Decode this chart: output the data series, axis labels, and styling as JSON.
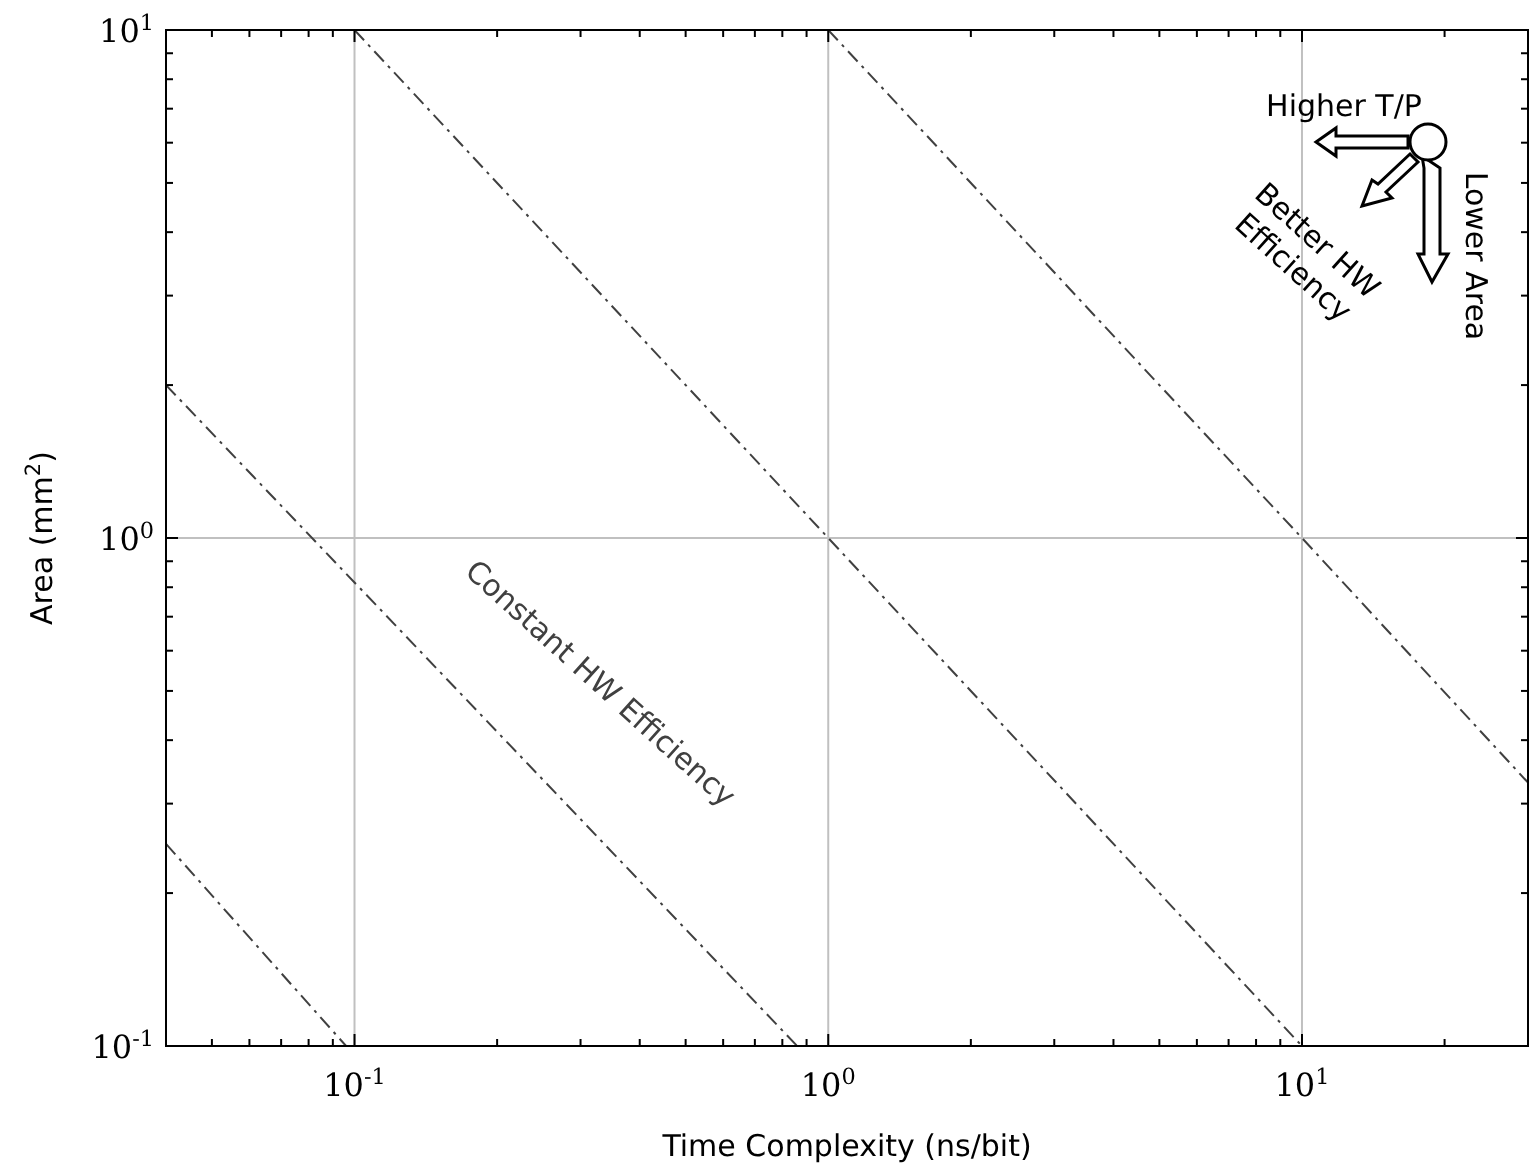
{
  "chart_data": {
    "type": "line",
    "xlabel": "Time Complexity (ns/bit)",
    "ylabel": "Area (mm$^{2}$)",
    "log": "xy",
    "grid": true,
    "line_style": "dashed",
    "marker": "none",
    "xlim": [
      0.04,
      30
    ],
    "ylim": [
      0.1,
      10
    ],
    "xticks": [
      {
        "value": 0.05,
        "label": null
      },
      {
        "value": 0.06,
        "label": null
      },
      {
        "value": 0.07,
        "label": null
      },
      {
        "value": 0.08,
        "label": null
      },
      {
        "value": 0.09,
        "label": null
      },
      {
        "value": 0.1,
        "label": "10$^{-1}$"
      },
      {
        "value": 0.2,
        "label": null
      },
      {
        "value": 0.3,
        "label": null
      },
      {
        "value": 0.4,
        "label": null
      },
      {
        "value": 0.5,
        "label": null
      },
      {
        "value": 0.6,
        "label": null
      },
      {
        "value": 0.7,
        "label": null
      },
      {
        "value": 0.8,
        "label": null
      },
      {
        "value": 0.9,
        "label": null
      },
      {
        "value": 1,
        "label": "10$^{0}$"
      },
      {
        "value": 2,
        "label": null
      },
      {
        "value": 3,
        "label": null
      },
      {
        "value": 4,
        "label": null
      },
      {
        "value": 5,
        "label": null
      },
      {
        "value": 6,
        "label": null
      },
      {
        "value": 7,
        "label": null
      },
      {
        "value": 8,
        "label": null
      },
      {
        "value": 9,
        "label": null
      },
      {
        "value": 10,
        "label": "10$^{1}$"
      },
      {
        "value": 20,
        "label": null
      }
    ],
    "yticks": [
      {
        "value": 0.1,
        "label": "10$^{-1}$"
      },
      {
        "value": 0.2,
        "label": null
      },
      {
        "value": 0.3,
        "label": null
      },
      {
        "value": 0.4,
        "label": null
      },
      {
        "value": 0.5,
        "label": null
      },
      {
        "value": 0.6,
        "label": null
      },
      {
        "value": 0.7,
        "label": null
      },
      {
        "value": 0.8,
        "label": null
      },
      {
        "value": 0.9,
        "label": null
      },
      {
        "value": 1,
        "label": "10$^{0}$"
      },
      {
        "value": 2,
        "label": null
      },
      {
        "value": 3,
        "label": null
      },
      {
        "value": 4,
        "label": null
      },
      {
        "value": 5,
        "label": null
      },
      {
        "value": 6,
        "label": null
      },
      {
        "value": 7,
        "label": null
      },
      {
        "value": 8,
        "label": null
      },
      {
        "value": 9,
        "label": null
      },
      {
        "value": 10,
        "label": "10$^{1}$"
      }
    ],
    "series": [
      {
        "color": "#404040",
        "x": [
          0.04,
          0.096
        ],
        "values": [
          0.25,
          0.1
        ]
      },
      {
        "color": "#404040",
        "x": [
          0.04,
          0.86
        ],
        "values": [
          2.0,
          0.1
        ]
      },
      {
        "color": "#404040",
        "x": [
          0.1,
          1,
          10
        ],
        "values": [
          10,
          1,
          0.1
        ]
      },
      {
        "color": "#404040",
        "x": [
          1,
          10,
          30
        ],
        "values": [
          10,
          1,
          0.33
        ]
      }
    ],
    "annotations": [
      "Constant HW Efficiency",
      "Higher T/P",
      "Better HW Efficiency",
      "Lower Area"
    ]
  }
}
